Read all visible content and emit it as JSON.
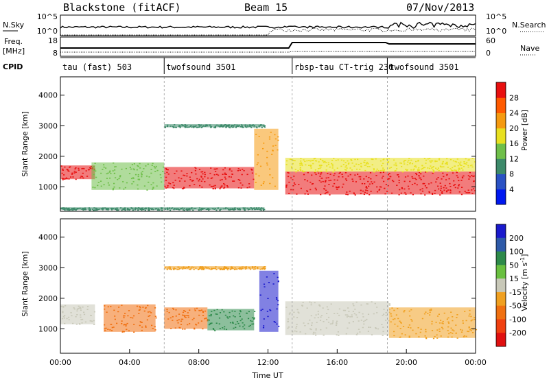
{
  "header": {
    "title_left": "Blackstone (fitACF)",
    "title_center": "Beam 15",
    "title_right": "07/Nov/2013"
  },
  "top_panels": {
    "nsky": {
      "label": "N.Sky",
      "left_ticks": [
        "10^5",
        "10^0"
      ],
      "right_ticks": [
        "10^5",
        "10^0"
      ],
      "right_label": "N.Search"
    },
    "freq": {
      "label_line1": "Freq.",
      "label_line2": "[MHz]",
      "left_ticks": [
        "18",
        "8"
      ],
      "right_ticks": [
        "60",
        "0"
      ],
      "right_label": "Nave"
    },
    "cpid": {
      "label": "CPID",
      "segments": [
        {
          "label": "tau (fast) 503",
          "start_h": 0.0,
          "end_h": 6.0
        },
        {
          "label": "twofsound 3501",
          "start_h": 6.0,
          "end_h": 13.4
        },
        {
          "label": "rbsp-tau CT-trig 230",
          "start_h": 13.4,
          "end_h": 18.9
        },
        {
          "label": "twofsound 3501",
          "start_h": 18.9,
          "end_h": 24.0
        }
      ]
    }
  },
  "chart_data": [
    {
      "type": "heatmap",
      "title": "Power",
      "ylabel": "Slant Range [km]",
      "xlabel": "Time UT",
      "xlim_hours": [
        0,
        24
      ],
      "ylim": [
        200,
        4600
      ],
      "x_ticks": [
        "00:00",
        "04:00",
        "08:00",
        "12:00",
        "16:00",
        "20:00",
        "00:00"
      ],
      "y_ticks": [
        1000,
        2000,
        3000,
        4000
      ],
      "colorbar": {
        "label": "Power [dB]",
        "ticks": [
          "4",
          "8",
          "12",
          "16",
          "20",
          "24",
          "28"
        ],
        "colors": [
          "#0018f0",
          "#2a52c4",
          "#3d8a6a",
          "#6fbf4a",
          "#e8e020",
          "#f59a10",
          "#ff5a00",
          "#e81010"
        ]
      },
      "echo_bands": [
        {
          "t0": 0.0,
          "t1": 2.0,
          "r0": 1250,
          "r1": 1700,
          "level": 28
        },
        {
          "t0": 1.8,
          "t1": 6.0,
          "r0": 900,
          "r1": 1800,
          "level": 12
        },
        {
          "t0": 6.0,
          "t1": 11.2,
          "r0": 950,
          "r1": 1650,
          "level": 26
        },
        {
          "t0": 11.2,
          "t1": 12.6,
          "r0": 900,
          "r1": 2900,
          "level": 20
        },
        {
          "t0": 13.0,
          "t1": 24.0,
          "r0": 750,
          "r1": 1500,
          "level": 28
        },
        {
          "t0": 13.0,
          "t1": 24.0,
          "r0": 1500,
          "r1": 1950,
          "level": 14
        },
        {
          "t0": 6.0,
          "t1": 11.8,
          "r0": 2950,
          "r1": 3050,
          "level": 6
        },
        {
          "t0": 0.0,
          "t1": 11.8,
          "r0": 250,
          "r1": 330,
          "level": 8
        }
      ]
    },
    {
      "type": "heatmap",
      "title": "Velocity",
      "ylabel": "Slant Range [km]",
      "xlabel": "Time UT",
      "xlim_hours": [
        0,
        24
      ],
      "ylim": [
        200,
        4600
      ],
      "x_ticks": [
        "00:00",
        "04:00",
        "08:00",
        "12:00",
        "16:00",
        "20:00",
        "00:00"
      ],
      "y_ticks": [
        1000,
        2000,
        3000,
        4000
      ],
      "colorbar": {
        "label": "Velocity [m s^-1]",
        "ticks": [
          "200",
          "100",
          "50",
          "15",
          "-15",
          "-50",
          "-100",
          "-200"
        ],
        "colors": [
          "#1a1acc",
          "#2e5aa8",
          "#2e8a4a",
          "#6ac040",
          "#c8c8b8",
          "#f0a020",
          "#f07010",
          "#f04010",
          "#e01010"
        ]
      },
      "echo_bands": [
        {
          "t0": 0.0,
          "t1": 2.0,
          "r0": 1150,
          "r1": 1800,
          "vel": 0
        },
        {
          "t0": 2.5,
          "t1": 5.5,
          "r0": 900,
          "r1": 1800,
          "vel": -70
        },
        {
          "t0": 6.0,
          "t1": 8.5,
          "r0": 1000,
          "r1": 1700,
          "vel": -60
        },
        {
          "t0": 8.5,
          "t1": 11.2,
          "r0": 950,
          "r1": 1650,
          "vel": 40
        },
        {
          "t0": 11.5,
          "t1": 12.6,
          "r0": 900,
          "r1": 2900,
          "vel": 150
        },
        {
          "t0": 13.0,
          "t1": 19.0,
          "r0": 800,
          "r1": 1900,
          "vel": 0
        },
        {
          "t0": 19.0,
          "t1": 24.0,
          "r0": 700,
          "r1": 1700,
          "vel": -20
        },
        {
          "t0": 6.0,
          "t1": 11.8,
          "r0": 2950,
          "r1": 3050,
          "vel": -30
        }
      ]
    }
  ]
}
